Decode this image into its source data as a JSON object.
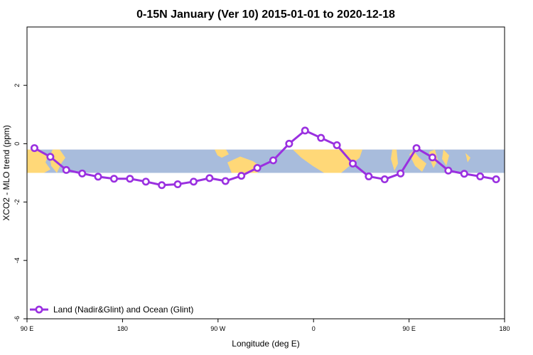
{
  "chart_data": {
    "type": "line",
    "title": "0-15N January (Ver 10)   2015-01-01 to 2020-12-18",
    "xlabel": "Longitude (deg E)",
    "ylabel": "XCO2 - MLO trend (ppm)",
    "x_ticks": [
      {
        "value": 90,
        "label": "90 E"
      },
      {
        "value": 180,
        "label": "180"
      },
      {
        "value": 270,
        "label": "90 W"
      },
      {
        "value": 360,
        "label": "0"
      },
      {
        "value": 450,
        "label": "90 E"
      },
      {
        "value": 540,
        "label": "180"
      }
    ],
    "y_ticks": [
      -6,
      -4,
      -2,
      0,
      2
    ],
    "xlim": [
      90,
      540
    ],
    "ylim": [
      -6,
      4
    ],
    "map_band": {
      "lat_range": "0-15N",
      "y_top": -0.2,
      "y_bottom": -1.0,
      "land_color": "#ffd878",
      "ocean_color": "#a8bcdc"
    },
    "series": [
      {
        "name": "Land (Nadir&Glint) and Ocean (Glint)",
        "color": "#9a30e0",
        "x": [
          97,
          112,
          127,
          142,
          157,
          172,
          187,
          202,
          217,
          232,
          247,
          262,
          277,
          292,
          307,
          322,
          337,
          352,
          367,
          382,
          397,
          412,
          427,
          442,
          457,
          472,
          487,
          502,
          517,
          532
        ],
        "y": [
          -0.15,
          -0.45,
          -0.9,
          -1.02,
          -1.13,
          -1.2,
          -1.2,
          -1.3,
          -1.42,
          -1.39,
          -1.3,
          -1.18,
          -1.28,
          -1.1,
          -0.83,
          -0.57,
          0.0,
          0.45,
          0.2,
          -0.05,
          -0.68,
          -1.12,
          -1.22,
          -1.02,
          -0.15,
          -0.47,
          -0.92,
          -1.03,
          -1.12,
          -1.22
        ]
      }
    ],
    "legend_position": "bottom-left"
  }
}
